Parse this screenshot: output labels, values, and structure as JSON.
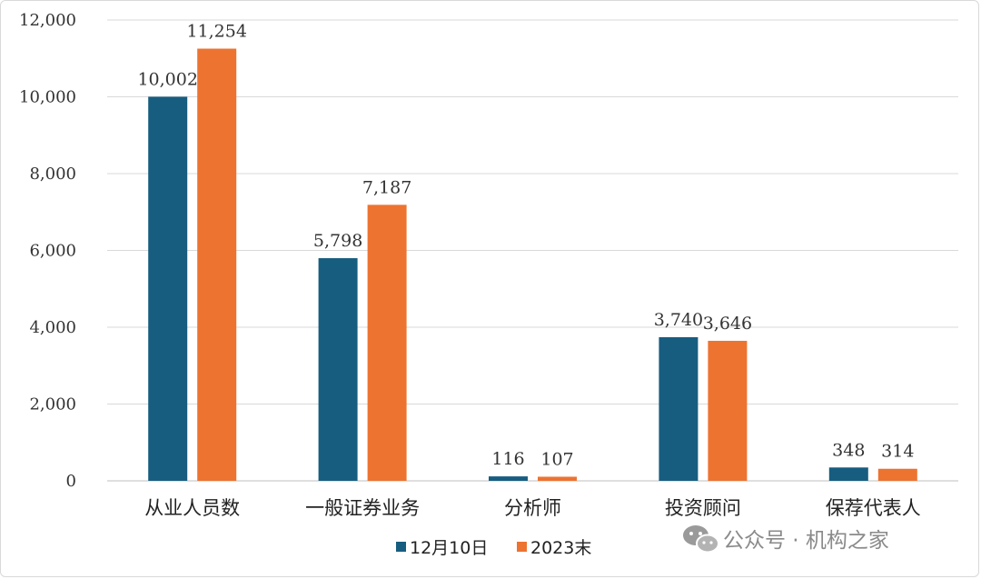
{
  "chart_data": {
    "type": "bar",
    "categories": [
      "从业人员数",
      "一般证券业务",
      "分析师",
      "投资顾问",
      "保荐代表人"
    ],
    "series": [
      {
        "name": "12月10日",
        "values": [
          10002,
          5798,
          116,
          3740,
          348
        ],
        "labels": [
          "10,002",
          "5,798",
          "116",
          "3,740",
          "348"
        ],
        "color": "#175d80"
      },
      {
        "name": "2023末",
        "values": [
          11254,
          7187,
          107,
          3646,
          314
        ],
        "labels": [
          "11,254",
          "7,187",
          "107",
          "3,646",
          "314"
        ],
        "color": "#ed7331"
      }
    ],
    "title": "",
    "xlabel": "",
    "ylabel": "",
    "ylim": [
      0,
      12000
    ],
    "yticks": [
      0,
      2000,
      4000,
      6000,
      8000,
      10000,
      12000
    ],
    "ytick_labels": [
      "0",
      "2,000",
      "4,000",
      "6,000",
      "8,000",
      "10,000",
      "12,000"
    ],
    "grid": true,
    "legend_position": "bottom"
  },
  "watermark": {
    "text": "公众号 · 机构之家",
    "icon": "wechat-icon"
  },
  "colors": {
    "grid": "#d9d9d9",
    "axis": "#bfbfbf",
    "watermark": "#8a8a8a"
  }
}
